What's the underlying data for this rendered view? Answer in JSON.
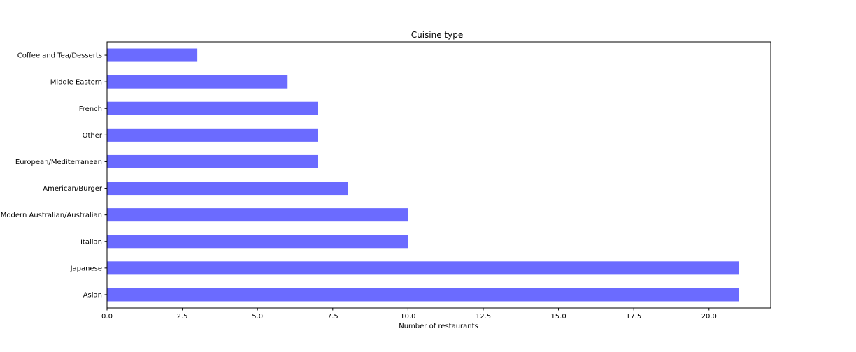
{
  "chart_data": {
    "type": "bar",
    "orientation": "horizontal",
    "title": "Cuisine type",
    "xlabel": "Number of restaurants",
    "ylabel": "",
    "xlim": [
      0,
      22.05
    ],
    "xticks": [
      "0.0",
      "2.5",
      "5.0",
      "7.5",
      "10.0",
      "12.5",
      "15.0",
      "17.5",
      "20.0"
    ],
    "xtick_values": [
      0,
      2.5,
      5,
      7.5,
      10,
      12.5,
      15,
      17.5,
      20
    ],
    "categories": [
      "Coffee and Tea/Desserts",
      "Middle Eastern",
      "French",
      "Other",
      "European/Mediterranean",
      "American/Burger",
      "Modern Australian/Australian",
      "Italian",
      "Japanese",
      "Asian"
    ],
    "values": [
      3,
      6,
      7,
      7,
      7,
      8,
      10,
      10,
      21,
      21
    ],
    "bar_color": "#6b6bff",
    "grid": false,
    "legend": "none"
  }
}
